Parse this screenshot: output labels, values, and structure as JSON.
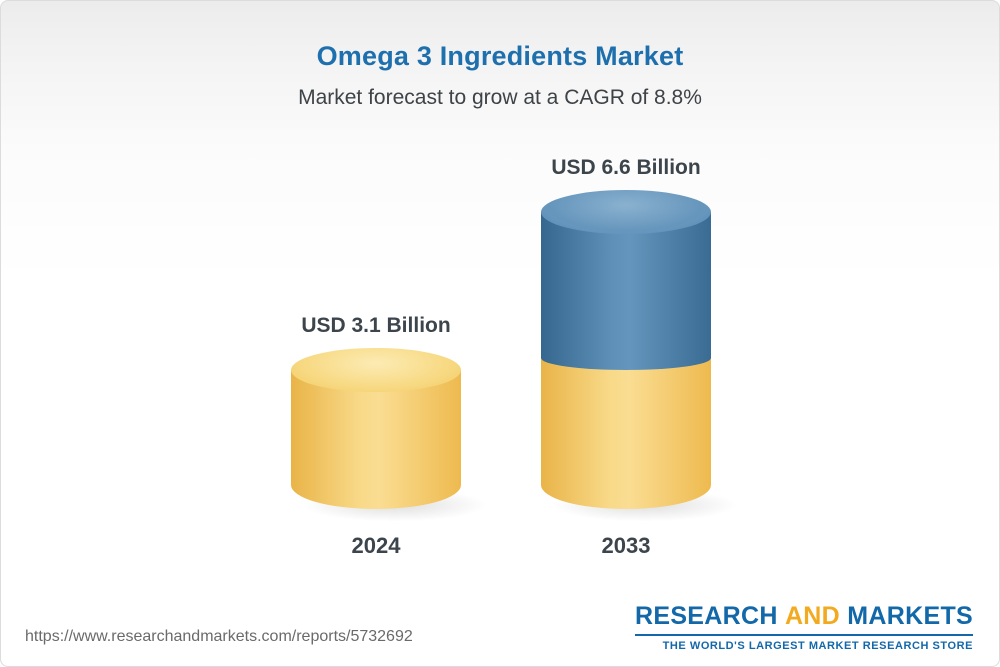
{
  "header": {
    "title": "Omega 3 Ingredients Market",
    "subtitle": "Market forecast to grow at a CAGR of 8.8%"
  },
  "chart_data": {
    "type": "bar",
    "variant": "3d-cylinder",
    "categories": [
      "2024",
      "2033"
    ],
    "values": [
      3.1,
      6.6
    ],
    "unit": "USD Billion",
    "value_labels": [
      "USD 3.1 Billion",
      "USD 6.6 Billion"
    ],
    "title": "Omega 3 Ingredients Market",
    "subtitle": "Market forecast to grow at a CAGR of 8.8%",
    "cagr": "8.8%",
    "ylim": [
      0,
      7
    ],
    "grid": false,
    "legend": "none",
    "notes": "2033 bar is stacked: bottom segment equals 2024 value (yellow), growth portion on top (blue)",
    "colors": {
      "bar_2024": "#f2c75f",
      "bar_2033_base": "#f2c75f",
      "bar_2033_growth": "#4a7ba6",
      "label_text": "#3d454c",
      "title_blue": "#1e6fad"
    }
  },
  "footer": {
    "url": "https://www.researchandmarkets.com/reports/5732692",
    "logo": {
      "research": "RESEARCH",
      "and": "AND",
      "markets": "MARKETS",
      "tagline": "THE WORLD'S LARGEST MARKET RESEARCH STORE"
    }
  }
}
